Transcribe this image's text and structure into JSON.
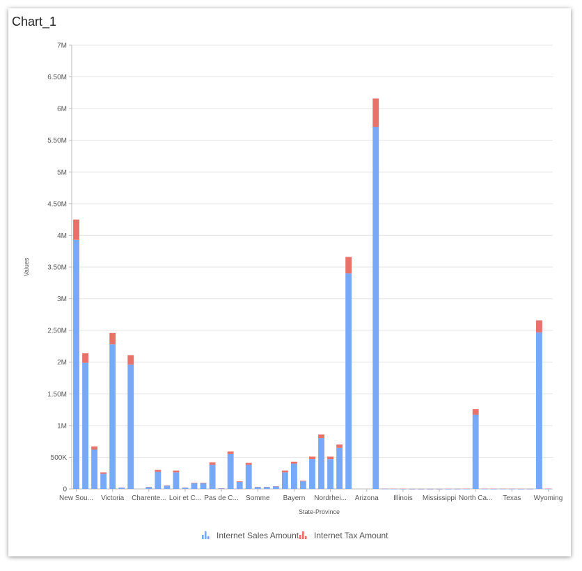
{
  "widget": {
    "title": "Chart_1"
  },
  "colors": {
    "sales": "#78a9f9",
    "tax": "#e8726a",
    "grid": "#e3e3e3",
    "axis": "#bbbbbb"
  },
  "chart_data": {
    "type": "bar",
    "stacked": true,
    "xlabel": "State-Province",
    "ylabel": "Values",
    "ylim": [
      0,
      7000000
    ],
    "yticks": [
      0,
      500000,
      1000000,
      1500000,
      2000000,
      2500000,
      3000000,
      3500000,
      4000000,
      4500000,
      5000000,
      5500000,
      6000000,
      6500000,
      7000000
    ],
    "ytick_labels": [
      "0",
      "500K",
      "1M",
      "1.50M",
      "2M",
      "2.50M",
      "3M",
      "3.50M",
      "4M",
      "4.50M",
      "5M",
      "5.50M",
      "6M",
      "6.50M",
      "7M"
    ],
    "category_labels": [
      {
        "index": 0,
        "label": "New Sou..."
      },
      {
        "index": 4,
        "label": "Victoria"
      },
      {
        "index": 8,
        "label": "Charente..."
      },
      {
        "index": 12,
        "label": "Loir et C..."
      },
      {
        "index": 16,
        "label": "Pas de C..."
      },
      {
        "index": 20,
        "label": "Somme"
      },
      {
        "index": 24,
        "label": "Bayern"
      },
      {
        "index": 28,
        "label": "Nordrhei..."
      },
      {
        "index": 32,
        "label": "Arizona"
      },
      {
        "index": 36,
        "label": "Illinois"
      },
      {
        "index": 40,
        "label": "Mississippi"
      },
      {
        "index": 44,
        "label": "North Ca..."
      },
      {
        "index": 48,
        "label": "Texas"
      },
      {
        "index": 52,
        "label": "Wyoming"
      }
    ],
    "series": [
      {
        "name": "Internet Sales Amount",
        "values": [
          3930000,
          1990000,
          620000,
          240000,
          2280000,
          20000,
          1960000,
          0,
          30000,
          270000,
          50000,
          260000,
          20000,
          90000,
          90000,
          380000,
          10000,
          550000,
          110000,
          380000,
          30000,
          30000,
          40000,
          260000,
          400000,
          120000,
          470000,
          800000,
          470000,
          650000,
          3400000,
          0,
          0,
          5710000,
          5000,
          3000,
          2000,
          1000,
          1000,
          1000,
          1000,
          2000,
          2000,
          3000,
          1170000,
          3000,
          2000,
          3000,
          3000,
          2000,
          2000,
          2470000,
          5000
        ]
      },
      {
        "name": "Internet Tax Amount",
        "values": [
          320000,
          150000,
          50000,
          20000,
          180000,
          2000,
          150000,
          0,
          3000,
          30000,
          5000,
          30000,
          2000,
          8000,
          8000,
          40000,
          1000,
          40000,
          10000,
          30000,
          3000,
          3000,
          4000,
          30000,
          30000,
          10000,
          40000,
          60000,
          40000,
          50000,
          260000,
          0,
          0,
          450000,
          500,
          300,
          200,
          100,
          100,
          100,
          100,
          200,
          200,
          300,
          90000,
          300,
          200,
          300,
          300,
          200,
          200,
          190000,
          500
        ]
      }
    ],
    "legend": {
      "position": "bottom"
    },
    "grid": true
  }
}
